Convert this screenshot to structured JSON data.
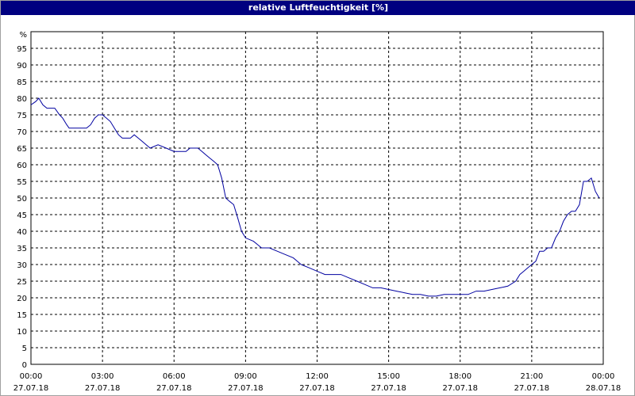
{
  "window": {
    "title": "relative Luftfeuchtigkeit [%]"
  },
  "chart_data": {
    "type": "line",
    "title": "relative Luftfeuchtigkeit [%]",
    "ylabel": "%",
    "ylim": [
      0,
      100
    ],
    "yticks": [
      0,
      5,
      10,
      15,
      20,
      25,
      30,
      35,
      40,
      45,
      50,
      55,
      60,
      65,
      70,
      75,
      80,
      85,
      90,
      95
    ],
    "xlim": [
      0,
      24
    ],
    "xticks": [
      {
        "time": "00:00",
        "date": "27.07.18"
      },
      {
        "time": "03:00",
        "date": "27.07.18"
      },
      {
        "time": "06:00",
        "date": "27.07.18"
      },
      {
        "time": "09:00",
        "date": "27.07.18"
      },
      {
        "time": "12:00",
        "date": "27.07.18"
      },
      {
        "time": "15:00",
        "date": "27.07.18"
      },
      {
        "time": "18:00",
        "date": "27.07.18"
      },
      {
        "time": "21:00",
        "date": "27.07.18"
      },
      {
        "time": "00:00",
        "date": "28.07.18"
      }
    ],
    "grid": true,
    "grid_style": "dashed",
    "line_color": "#0000a0",
    "series": [
      {
        "x": [
          0,
          0.2,
          0.33,
          0.5,
          0.67,
          0.8,
          1,
          1.1,
          1.2,
          1.33,
          1.5,
          1.6,
          1.67,
          2,
          2.17,
          2.33,
          2.5,
          2.67,
          2.83,
          3,
          3.17,
          3.33,
          3.5,
          3.67,
          3.83,
          4,
          4.17,
          4.33,
          4.5,
          4.67,
          4.83,
          5,
          5.33,
          5.67,
          6,
          6.17,
          6.33,
          6.5,
          6.67,
          6.83,
          7,
          7.17,
          7.33,
          7.5,
          7.67,
          7.83,
          8,
          8.17,
          8.33,
          8.5,
          8.67,
          8.83,
          9,
          9.33,
          9.5,
          9.67,
          10,
          10.33,
          10.67,
          11,
          11.33,
          11.67,
          12,
          12.33,
          12.67,
          13,
          13.33,
          13.67,
          14,
          14.33,
          14.67,
          15,
          15.33,
          15.67,
          16,
          16.33,
          16.67,
          17,
          17.33,
          17.67,
          18,
          18.33,
          18.67,
          19,
          19.33,
          19.67,
          20,
          20.33,
          20.5,
          20.67,
          20.83,
          21,
          21.17,
          21.33,
          21.5,
          21.67,
          21.83,
          22,
          22.17,
          22.33,
          22.5,
          22.67,
          22.83,
          23,
          23.17,
          23.33,
          23.5,
          23.67,
          23.83
        ],
        "y": [
          78,
          79,
          80,
          78,
          77,
          77,
          77,
          76,
          75,
          74,
          72,
          71,
          71,
          71,
          71,
          71,
          72,
          74,
          75,
          75,
          74,
          73,
          71,
          69,
          68,
          68,
          68,
          69,
          68,
          67,
          66,
          65,
          66,
          65,
          64,
          64,
          64,
          64,
          65,
          65,
          65,
          64,
          63,
          62,
          61,
          60,
          56,
          50,
          49,
          48,
          44,
          40,
          38,
          37,
          36,
          35,
          35,
          34,
          33,
          32,
          30,
          29,
          28,
          27,
          27,
          27,
          26,
          25,
          24,
          23,
          23,
          22.5,
          22,
          21.5,
          21,
          21,
          20.5,
          20.5,
          21,
          21,
          21,
          21,
          22,
          22,
          22.5,
          23,
          23.5,
          25,
          27,
          28,
          29,
          30,
          31,
          34,
          34,
          35,
          35,
          38,
          40,
          43,
          45,
          46,
          46,
          48,
          55,
          55,
          56,
          52,
          50
        ]
      }
    ]
  }
}
